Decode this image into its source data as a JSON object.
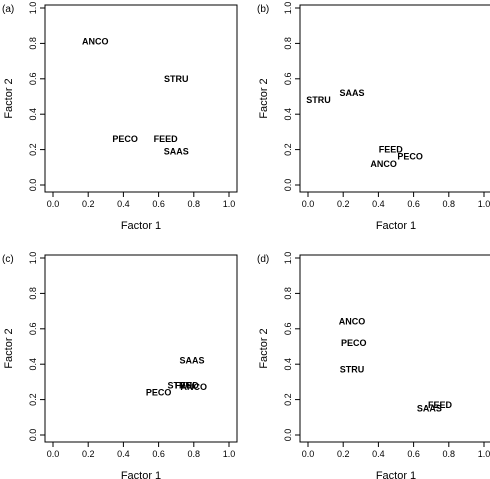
{
  "chart_data": [
    {
      "type": "scatter",
      "panel_label": "(a)",
      "xlabel": "Factor 1",
      "ylabel": "Factor 2",
      "xlim": [
        0,
        1
      ],
      "ylim": [
        0,
        1
      ],
      "ticks": [
        "0.0",
        "0.2",
        "0.4",
        "0.6",
        "0.8",
        "1.0"
      ],
      "points": [
        {
          "label": "ANCO",
          "x": 0.24,
          "y": 0.81
        },
        {
          "label": "STRU",
          "x": 0.7,
          "y": 0.6
        },
        {
          "label": "PECO",
          "x": 0.41,
          "y": 0.26
        },
        {
          "label": "FEED",
          "x": 0.64,
          "y": 0.26
        },
        {
          "label": "SAAS",
          "x": 0.7,
          "y": 0.19
        }
      ]
    },
    {
      "type": "scatter",
      "panel_label": "(b)",
      "xlabel": "Factor 1",
      "ylabel": "Factor 2",
      "xlim": [
        0,
        1
      ],
      "ylim": [
        0,
        1
      ],
      "ticks": [
        "0.0",
        "0.2",
        "0.4",
        "0.6",
        "0.8",
        "1.0"
      ],
      "points": [
        {
          "label": "STRU",
          "x": 0.06,
          "y": 0.48
        },
        {
          "label": "SAAS",
          "x": 0.25,
          "y": 0.52
        },
        {
          "label": "FEED",
          "x": 0.47,
          "y": 0.2
        },
        {
          "label": "PECO",
          "x": 0.58,
          "y": 0.16
        },
        {
          "label": "ANCO",
          "x": 0.43,
          "y": 0.12
        }
      ]
    },
    {
      "type": "scatter",
      "panel_label": "(c)",
      "xlabel": "Factor 1",
      "ylabel": "Factor 2",
      "xlim": [
        0,
        1
      ],
      "ylim": [
        0,
        1
      ],
      "ticks": [
        "0.0",
        "0.2",
        "0.4",
        "0.6",
        "0.8",
        "1.0"
      ],
      "points": [
        {
          "label": "SAAS",
          "x": 0.79,
          "y": 0.42
        },
        {
          "label": "STRU",
          "x": 0.72,
          "y": 0.28
        },
        {
          "label": "FEED",
          "x": 0.76,
          "y": 0.28
        },
        {
          "label": "ANCO",
          "x": 0.8,
          "y": 0.27
        },
        {
          "label": "PECO",
          "x": 0.6,
          "y": 0.24
        }
      ]
    },
    {
      "type": "scatter",
      "panel_label": "(d)",
      "xlabel": "Factor 1",
      "ylabel": "Factor 2",
      "xlim": [
        0,
        1
      ],
      "ylim": [
        0,
        1
      ],
      "ticks": [
        "0.0",
        "0.2",
        "0.4",
        "0.6",
        "0.8",
        "1.0"
      ],
      "points": [
        {
          "label": "ANCO",
          "x": 0.25,
          "y": 0.64
        },
        {
          "label": "PECO",
          "x": 0.26,
          "y": 0.52
        },
        {
          "label": "STRU",
          "x": 0.25,
          "y": 0.37
        },
        {
          "label": "FEED",
          "x": 0.75,
          "y": 0.17
        },
        {
          "label": "SAAS",
          "x": 0.69,
          "y": 0.15
        }
      ]
    }
  ]
}
